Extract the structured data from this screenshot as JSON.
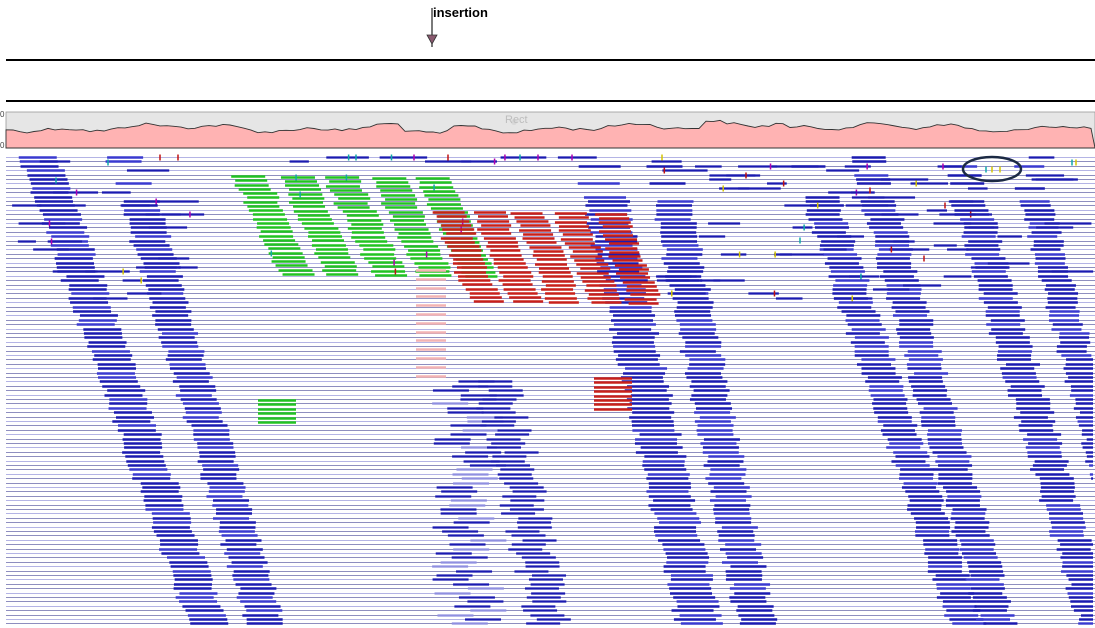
{
  "annotation": {
    "label": "insertion"
  },
  "coverage_track": {
    "axis_top_label": "0",
    "axis_bottom_label": "0",
    "tooltip_text": "Rect",
    "fill_color": "#ffb3b3",
    "track_bg_color": "#e6e6e6"
  },
  "colors": {
    "read_forward": "#1a1ab0",
    "read_reverse": "#3a3ad0",
    "read_faint": "#8f8fe0",
    "split_insert_left": "#22c322",
    "split_insert_right": "#c8201a",
    "mismatch_a": "#d4c400",
    "mismatch_b": "#c01010",
    "mismatch_c": "#10a8a8",
    "mismatch_d": "#b000b0",
    "highlight_ellipse": "#1c2a44"
  },
  "icons": {
    "insertion_marker": "down-arrow-icon",
    "highlight": "ellipse-highlight-icon"
  }
}
